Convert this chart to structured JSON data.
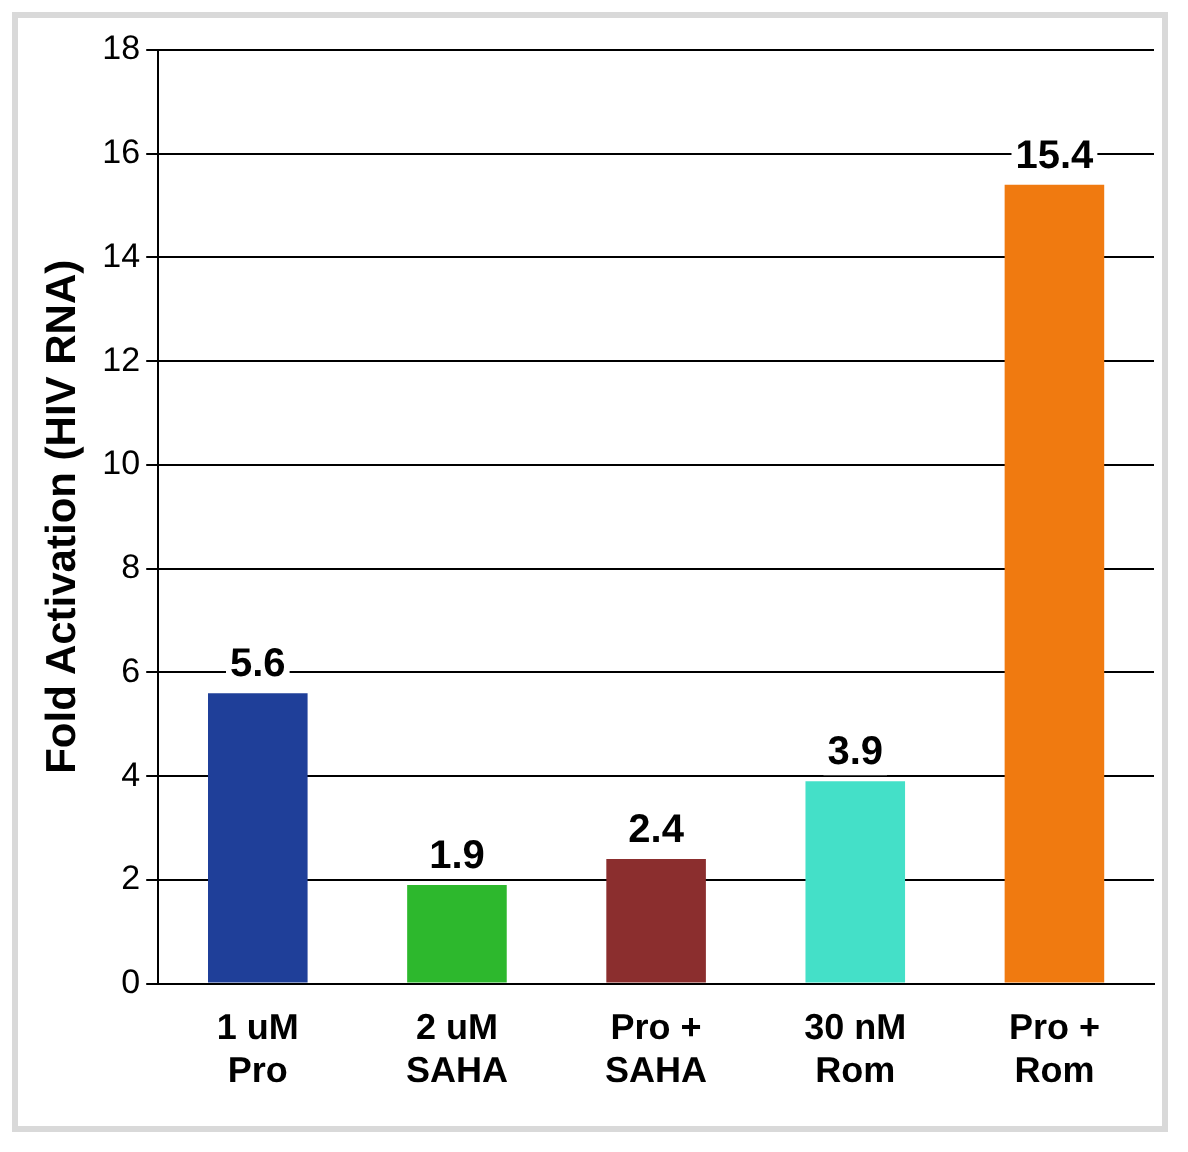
{
  "chart_data": {
    "type": "bar",
    "ylabel": "Fold Activation (HIV RNA)",
    "categories": [
      "1 uM Pro",
      "2 uM SAHA",
      "Pro + SAHA",
      "30 nM Rom",
      "Pro + Rom"
    ],
    "values": [
      5.6,
      1.9,
      2.4,
      3.9,
      15.4
    ],
    "colors": [
      "#1f3f99",
      "#2db82d",
      "#8b2e2e",
      "#44e0c8",
      "#f07a10"
    ],
    "ylim": [
      0,
      18
    ],
    "yticks": [
      0,
      2,
      4,
      6,
      8,
      10,
      12,
      14,
      16,
      18
    ],
    "grid": "y",
    "data_labels": true
  }
}
